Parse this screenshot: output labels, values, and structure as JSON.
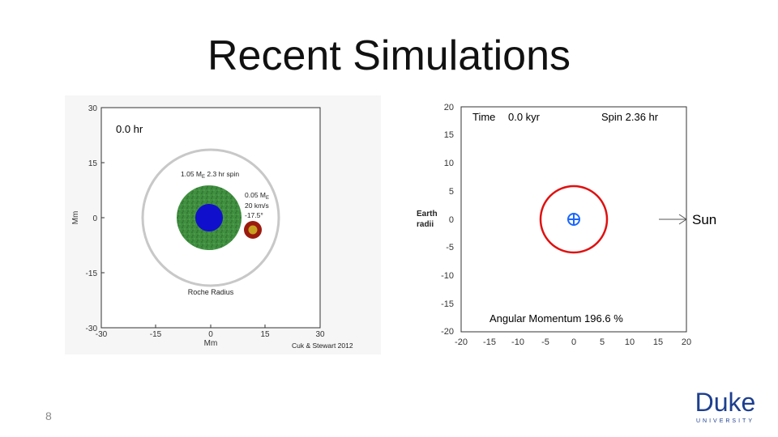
{
  "slide": {
    "title": "Recent Simulations",
    "number": "8"
  },
  "left_figure": {
    "time_label": "0.0 hr",
    "y_axis_label": "Mm",
    "x_axis_label": "Mm",
    "ticks": [
      "30",
      "15",
      "0",
      "-15",
      "-30"
    ],
    "x_ticks": [
      "-30",
      "-15",
      "0",
      "15",
      "30"
    ],
    "planet_label_prefix": "1.05 M",
    "planet_label_sub": "E",
    "planet_label_suffix": " 2.3 hr spin",
    "impactor_mass_prefix": "0.05 M",
    "impactor_mass_sub": "E",
    "impactor_speed": "20 km/s",
    "impactor_angle": "-17.5°",
    "roche_label": "Roche Radius",
    "credit": "Cuk & Stewart 2012",
    "colors": {
      "roche": "#c8c8c8",
      "mantle": "#3f8f3f",
      "core": "#1010cc",
      "impactor": "#9b1a0e",
      "impactor_core": "#c8a020"
    }
  },
  "right_figure": {
    "time_label": "Time",
    "time_value": "0.0 kyr",
    "spin_label": "Spin 2.36 hr",
    "y_axis_label_1": "Earth",
    "y_axis_label_2": "radii",
    "y_ticks": [
      "20",
      "15",
      "10",
      "5",
      "0",
      "-5",
      "-10",
      "-15",
      "-20"
    ],
    "x_ticks": [
      "-20",
      "-15",
      "-10",
      "-5",
      "0",
      "5",
      "10",
      "15",
      "20"
    ],
    "sun_label": "Sun",
    "angular_momentum": "Angular Momentum 196.6 %",
    "colors": {
      "orbit": "#e01010",
      "earth_symbol": "#1a66ff"
    }
  },
  "logo": {
    "name": "Duke",
    "subtitle": "UNIVERSITY",
    "color": "#1d3f8f"
  }
}
